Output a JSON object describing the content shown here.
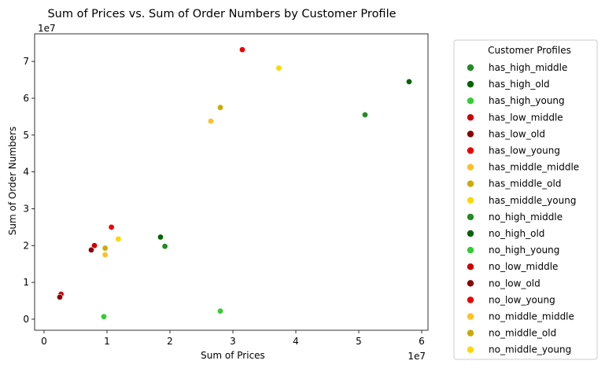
{
  "chart_data": {
    "type": "scatter",
    "title": "Sum of Prices vs. Sum of Order Numbers by Customer Profile",
    "xlabel": "Sum of Prices",
    "ylabel": "Sum of Order Numbers",
    "x_offset_label": "1e7",
    "y_offset_label": "1e7",
    "xlim": [
      -0.15,
      6.1
    ],
    "ylim": [
      -0.3,
      7.75
    ],
    "x_ticks": [
      0,
      1,
      2,
      3,
      4,
      5,
      6
    ],
    "y_ticks": [
      0,
      1,
      2,
      3,
      4,
      5,
      6,
      7
    ],
    "grid": false,
    "legend_title": "Customer Profiles",
    "legend_placement": "outside-right",
    "series": [
      {
        "name": "has_high_middle",
        "color": "#228B22",
        "points": [
          [
            5.1,
            5.55
          ]
        ]
      },
      {
        "name": "has_high_old",
        "color": "#006400",
        "points": [
          [
            5.8,
            6.45
          ]
        ]
      },
      {
        "name": "has_high_young",
        "color": "#32CD32",
        "points": [
          [
            2.8,
            0.22
          ]
        ]
      },
      {
        "name": "has_low_middle",
        "color": "#CC0000",
        "points": [
          [
            0.27,
            0.68
          ]
        ]
      },
      {
        "name": "has_low_old",
        "color": "#8B0000",
        "points": [
          [
            0.25,
            0.6
          ]
        ]
      },
      {
        "name": "has_low_young",
        "color": "#EE0000",
        "points": [
          [
            3.15,
            7.32
          ]
        ]
      },
      {
        "name": "has_middle_middle",
        "color": "#FFBF27",
        "points": [
          [
            2.65,
            5.38
          ]
        ]
      },
      {
        "name": "has_middle_old",
        "color": "#CCAA00",
        "points": [
          [
            2.8,
            5.75
          ]
        ]
      },
      {
        "name": "has_middle_young",
        "color": "#FFD700",
        "points": [
          [
            3.73,
            6.82
          ]
        ]
      },
      {
        "name": "no_high_middle",
        "color": "#228B22",
        "points": [
          [
            1.92,
            1.98
          ]
        ]
      },
      {
        "name": "no_high_old",
        "color": "#006400",
        "points": [
          [
            1.85,
            2.23
          ]
        ]
      },
      {
        "name": "no_high_young",
        "color": "#32CD32",
        "points": [
          [
            0.95,
            0.07
          ]
        ]
      },
      {
        "name": "no_low_middle",
        "color": "#CC0000",
        "points": [
          [
            0.8,
            2.0
          ]
        ]
      },
      {
        "name": "no_low_old",
        "color": "#8B0000",
        "points": [
          [
            0.75,
            1.88
          ]
        ]
      },
      {
        "name": "no_low_young",
        "color": "#EE0000",
        "points": [
          [
            1.07,
            2.5
          ]
        ]
      },
      {
        "name": "no_middle_middle",
        "color": "#FFBF27",
        "points": [
          [
            0.97,
            1.75
          ]
        ]
      },
      {
        "name": "no_middle_old",
        "color": "#CCAA00",
        "points": [
          [
            0.97,
            1.93
          ]
        ]
      },
      {
        "name": "no_middle_young",
        "color": "#FFD700",
        "points": [
          [
            1.18,
            2.18
          ]
        ]
      }
    ]
  }
}
